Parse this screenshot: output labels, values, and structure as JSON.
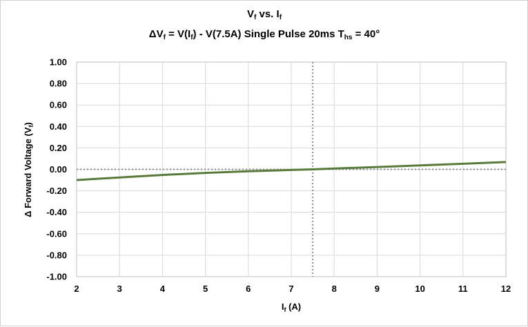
{
  "chart_data": {
    "type": "line",
    "title": "Vf vs. If",
    "title_line1": {
      "main": "V",
      "sub": "f",
      "mid": " vs. I",
      "sub2": "f"
    },
    "subtitle_parts": {
      "p1": "ΔV",
      "p1_sub": "f",
      "p2": " = V(I",
      "p2_sub": "f",
      "p3": ") - V(7.5A)  Single Pulse 20ms  T",
      "p3_sub": "hs",
      "p4": " = 40°"
    },
    "subtitle": "ΔVf = V(If) - V(7.5A)  Single Pulse 20ms  Ths = 40°",
    "xlabel_parts": {
      "main": "I",
      "sub": "f",
      "rest": " (A)"
    },
    "ylabel_parts": {
      "main": "Δ Forward Voltage (V",
      "sub": "f",
      "rest": ")"
    },
    "xlim": [
      2,
      12
    ],
    "ylim": [
      -1.0,
      1.0
    ],
    "x_ticks": [
      "2",
      "3",
      "4",
      "5",
      "6",
      "7",
      "8",
      "9",
      "10",
      "11",
      "12"
    ],
    "y_ticks": [
      "1.00",
      "0.80",
      "0.60",
      "0.40",
      "0.20",
      "0.00",
      "-0.20",
      "-0.40",
      "-0.60",
      "-0.80",
      "-1.00"
    ],
    "grid": true,
    "reference_lines": {
      "x": 7.5,
      "y": 0.0
    },
    "series": [
      {
        "x": [
          2,
          3,
          4,
          5,
          6,
          7,
          7.5,
          8,
          9,
          10,
          11,
          12
        ],
        "y": [
          -0.1,
          -0.075,
          -0.052,
          -0.033,
          -0.018,
          -0.006,
          0.0,
          0.008,
          0.022,
          0.037,
          0.052,
          0.068
        ],
        "color": "#5a7a3a"
      }
    ],
    "colors": {
      "grid": "#d9d9d9",
      "reference": "#8c8c8c",
      "axis": "#7f7f7f"
    }
  }
}
